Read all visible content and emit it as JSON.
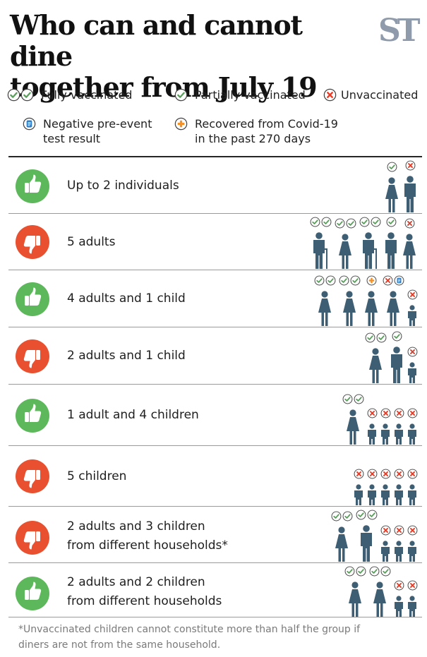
{
  "header": {
    "title_line1": "Who can and cannot dine",
    "title_line2": "together from July 19",
    "logo": "ST"
  },
  "legend": [
    {
      "key": "fully",
      "icons": [
        "check",
        "check"
      ],
      "label_line1": "Fully vaccinated",
      "label_line2": ""
    },
    {
      "key": "partial",
      "icons": [
        "check"
      ],
      "label_line1": "Partially vaccinated",
      "label_line2": ""
    },
    {
      "key": "unvax",
      "icons": [
        "cross"
      ],
      "label_line1": "Unvaccinated",
      "label_line2": ""
    },
    {
      "key": "test",
      "icons": [
        "test"
      ],
      "label_line1": "Negative pre-event",
      "label_line2": "test result"
    },
    {
      "key": "recovered",
      "icons": [
        "recovered"
      ],
      "label_line1": "Recovered from Covid-19",
      "label_line2": "in the past 270 days"
    }
  ],
  "colors": {
    "figure": "#3d5e73",
    "allowed": "#5cb85a",
    "not_allowed": "#e8502f",
    "check": "#5a9e5c",
    "cross": "#e0402c",
    "test": "#2e7ec8",
    "recovered": "#f3922a"
  },
  "rows": [
    {
      "allowed": true,
      "label_line1": "Up to 2 individuals",
      "label_line2": "",
      "people": [
        {
          "type": "woman",
          "badges": [
            "check"
          ]
        },
        {
          "type": "man",
          "badges": [
            "cross"
          ]
        }
      ]
    },
    {
      "allowed": false,
      "label_line1": "5 adults",
      "label_line2": "",
      "people": [
        {
          "type": "elder-man",
          "badges": [
            "check",
            "check"
          ]
        },
        {
          "type": "woman",
          "badges": [
            "check",
            "check"
          ]
        },
        {
          "type": "elder-man",
          "badges": [
            "check",
            "check"
          ]
        },
        {
          "type": "man",
          "badges": [
            "check"
          ]
        },
        {
          "type": "woman",
          "badges": [
            "cross"
          ]
        }
      ]
    },
    {
      "allowed": true,
      "label_line1": "4 adults and 1 child",
      "label_line2": "",
      "people": [
        {
          "type": "woman",
          "badges": [
            "check",
            "check"
          ]
        },
        {
          "type": "woman",
          "badges": [
            "check",
            "check"
          ]
        },
        {
          "type": "woman",
          "badges": [
            "recovered"
          ]
        },
        {
          "type": "woman",
          "badges": [
            "cross",
            "test"
          ]
        },
        {
          "type": "child",
          "badges": [
            "cross"
          ]
        }
      ]
    },
    {
      "allowed": false,
      "label_line1": "2 adults and 1 child",
      "label_line2": "",
      "people": [
        {
          "type": "woman",
          "badges": [
            "check",
            "check"
          ]
        },
        {
          "type": "man",
          "badges": [
            "check"
          ]
        },
        {
          "type": "child",
          "badges": [
            "cross"
          ]
        }
      ]
    },
    {
      "allowed": true,
      "label_line1": "1 adult and 4 children",
      "label_line2": "",
      "people": [
        {
          "type": "woman",
          "badges": [
            "check",
            "check"
          ]
        },
        {
          "type": "child",
          "badges": [
            "cross"
          ]
        },
        {
          "type": "child",
          "badges": [
            "cross"
          ]
        },
        {
          "type": "child",
          "badges": [
            "cross"
          ]
        },
        {
          "type": "child",
          "badges": [
            "cross"
          ]
        }
      ]
    },
    {
      "allowed": false,
      "label_line1": "5 children",
      "label_line2": "",
      "people": [
        {
          "type": "child",
          "badges": [
            "cross"
          ]
        },
        {
          "type": "child",
          "badges": [
            "cross"
          ]
        },
        {
          "type": "child",
          "badges": [
            "cross"
          ]
        },
        {
          "type": "child",
          "badges": [
            "cross"
          ]
        },
        {
          "type": "child",
          "badges": [
            "cross"
          ]
        }
      ]
    },
    {
      "allowed": false,
      "label_line1": "2 adults and 3 children",
      "label_line2": "from different households*",
      "people": [
        {
          "type": "woman",
          "badges": [
            "check",
            "check"
          ]
        },
        {
          "type": "man",
          "badges": [
            "check",
            "check"
          ]
        },
        {
          "type": "child",
          "badges": [
            "cross"
          ]
        },
        {
          "type": "child",
          "badges": [
            "cross"
          ]
        },
        {
          "type": "child",
          "badges": [
            "cross"
          ]
        }
      ]
    },
    {
      "allowed": true,
      "label_line1": "2 adults and 2 children",
      "label_line2": "from different households",
      "people": [
        {
          "type": "woman",
          "badges": [
            "check",
            "check"
          ]
        },
        {
          "type": "woman",
          "badges": [
            "check",
            "check"
          ]
        },
        {
          "type": "child",
          "badges": [
            "cross"
          ]
        },
        {
          "type": "child",
          "badges": [
            "cross"
          ]
        }
      ]
    }
  ],
  "footnote": {
    "line1": "*Unvaccinated children cannot constitute more than half the group if",
    "line2": "diners are not from the same household."
  }
}
